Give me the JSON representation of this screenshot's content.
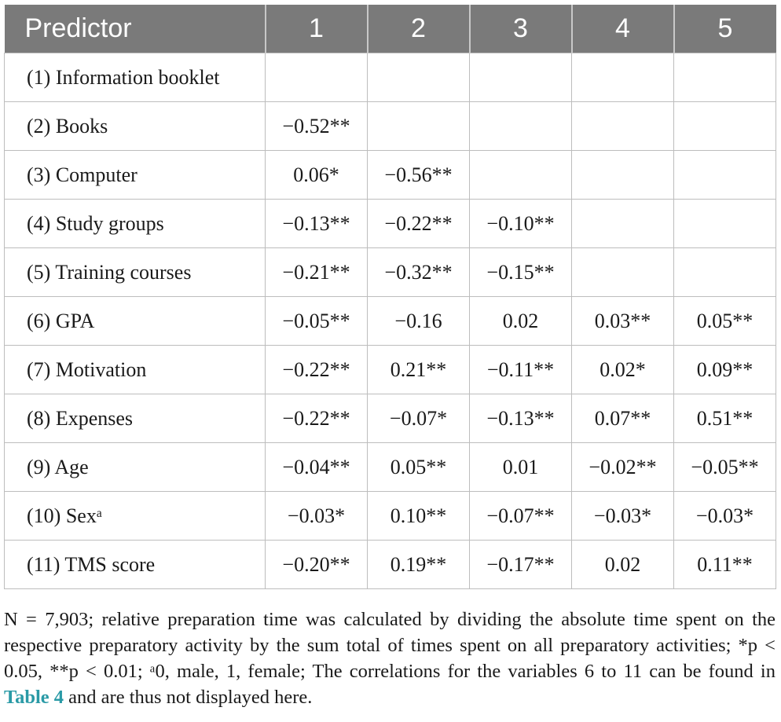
{
  "header": [
    "Predictor",
    "1",
    "2",
    "3",
    "4",
    "5"
  ],
  "rows": [
    {
      "label": "(1) Information booklet",
      "values": [
        "",
        "",
        "",
        "",
        ""
      ]
    },
    {
      "label": "(2) Books",
      "values": [
        "−0.52**",
        "",
        "",
        "",
        ""
      ]
    },
    {
      "label": "(3) Computer",
      "values": [
        "0.06*",
        "−0.56**",
        "",
        "",
        ""
      ]
    },
    {
      "label": "(4) Study groups",
      "values": [
        "−0.13**",
        "−0.22**",
        "−0.10**",
        "",
        ""
      ]
    },
    {
      "label": "(5) Training courses",
      "values": [
        "−0.21**",
        "−0.32**",
        "−0.15**",
        "",
        ""
      ]
    },
    {
      "label": "(6) GPA",
      "values": [
        "−0.05**",
        "−0.16",
        "0.02",
        "0.03**",
        "0.05**"
      ]
    },
    {
      "label": "(7) Motivation",
      "values": [
        "−0.22**",
        "0.21**",
        "−0.11**",
        "0.02*",
        "0.09**"
      ]
    },
    {
      "label": "(8) Expenses",
      "values": [
        "−0.22**",
        "−0.07*",
        "−0.13**",
        "0.07**",
        "0.51**"
      ]
    },
    {
      "label": "(9) Age",
      "values": [
        "−0.04**",
        "0.05**",
        "0.01",
        "−0.02**",
        "−0.05**"
      ]
    },
    {
      "label": "(10) Sexᵃ",
      "values": [
        "−0.03*",
        "0.10**",
        "−0.07**",
        "−0.03*",
        "−0.03*"
      ]
    },
    {
      "label": "(11) TMS score",
      "values": [
        "−0.20**",
        "0.19**",
        "−0.17**",
        "0.02",
        "0.11**"
      ]
    }
  ],
  "footnote": {
    "text_before": "N = 7,903; relative preparation time was calculated by dividing the absolute time spent on the respective preparatory activity by the sum total of times spent on all preparatory activities; *p < 0.05, **p < 0.01; ᵃ0, male, 1, female; The correlations for the variables 6 to 11 can be found in ",
    "link": "Table 4",
    "text_after": " and are thus not displayed here."
  }
}
